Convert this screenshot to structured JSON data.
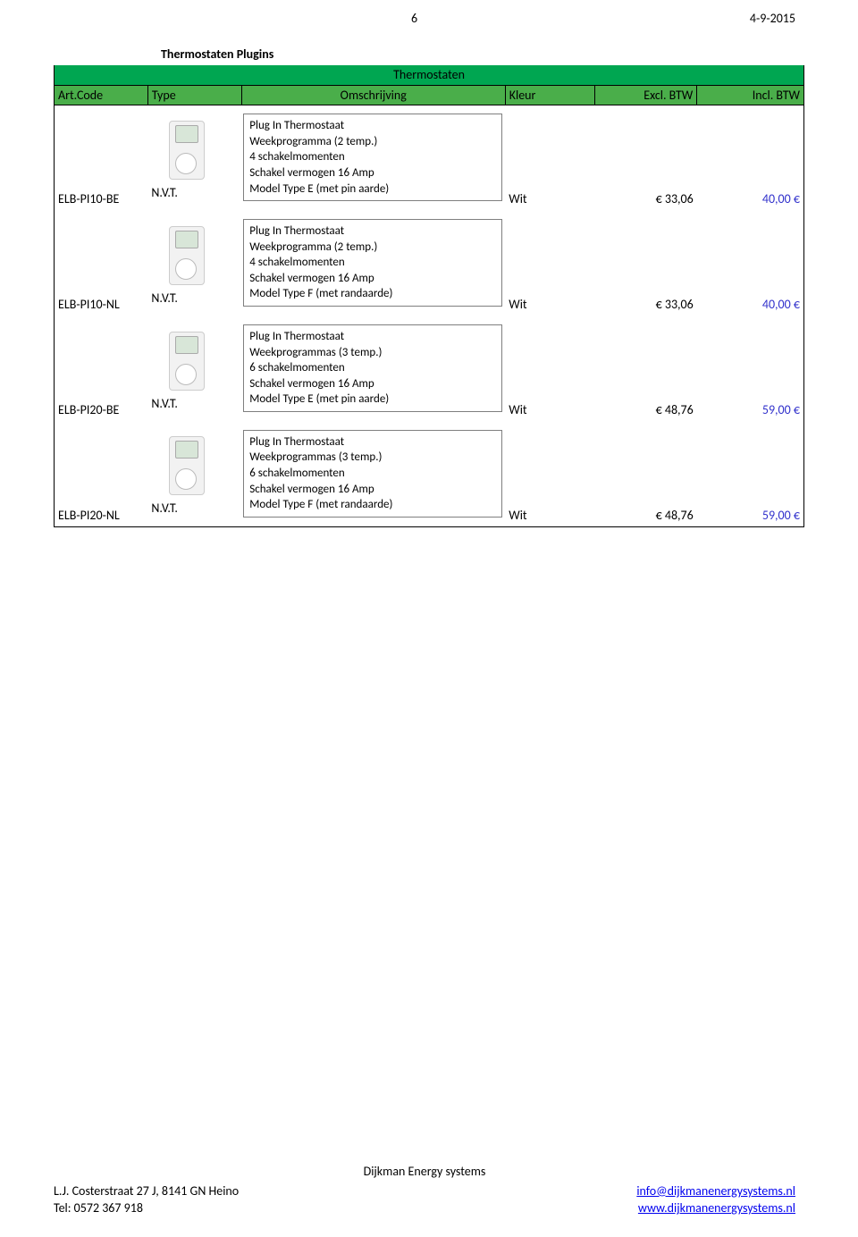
{
  "page": {
    "number": "6",
    "date": "4-9-2015"
  },
  "section_title": "Thermostaten Plugins",
  "subheader": "Thermostaten",
  "headers": {
    "art": "Art.Code",
    "type": "Type",
    "desc": "Omschrijving",
    "color": "Kleur",
    "excl": "Excl. BTW",
    "incl": "Incl. BTW"
  },
  "products": [
    {
      "art": "ELB-PI10-BE",
      "type": "N.V.T.",
      "desc": "Plug In Thermostaat\nWeekprogramma (2  temp.)\n4 schakelmomenten\nSchakel vermogen 16 Amp\nModel Type E (met pin aarde)",
      "color": "Wit",
      "excl": "€ 33,06",
      "incl": "40,00 €"
    },
    {
      "art": "ELB-PI10-NL",
      "type": "N.V.T.",
      "desc": "Plug In Thermostaat\nWeekprogramma (2  temp.)\n4 schakelmomenten\nSchakel vermogen 16 Amp\nModel Type F (met randaarde)",
      "color": "Wit",
      "excl": "€ 33,06",
      "incl": "40,00 €"
    },
    {
      "art": "ELB-PI20-BE",
      "type": "N.V.T.",
      "desc": "Plug In Thermostaat\nWeekprogrammas  (3 temp.)\n6 schakelmomenten\nSchakel vermogen 16 Amp\nModel Type E (met pin aarde)",
      "color": "Wit",
      "excl": "€ 48,76",
      "incl": "59,00 €"
    },
    {
      "art": "ELB-PI20-NL",
      "type": "N.V.T.",
      "desc": "Plug In Thermostaat\nWeekprogrammas (3  temp.)\n6 schakelmomenten\nSchakel vermogen 16 Amp\nModel Type F (met randaarde)",
      "color": "Wit",
      "excl": "€ 48,76",
      "incl": "59,00 €"
    }
  ],
  "footer": {
    "company": "Dijkman Energy systems",
    "address": "L.J. Costerstraat 27 J, 8141 GN Heino",
    "phone": "Tel:  0572 367 918",
    "email": "info@dijkmanenergysystems.nl",
    "web": "www.dijkmanenergysystems.nl"
  },
  "colors": {
    "header_bg": "#4aae4a",
    "subheader_bg": "#00a651",
    "incl_text": "#3333cc",
    "link": "#0000ee",
    "border": "#000000"
  }
}
